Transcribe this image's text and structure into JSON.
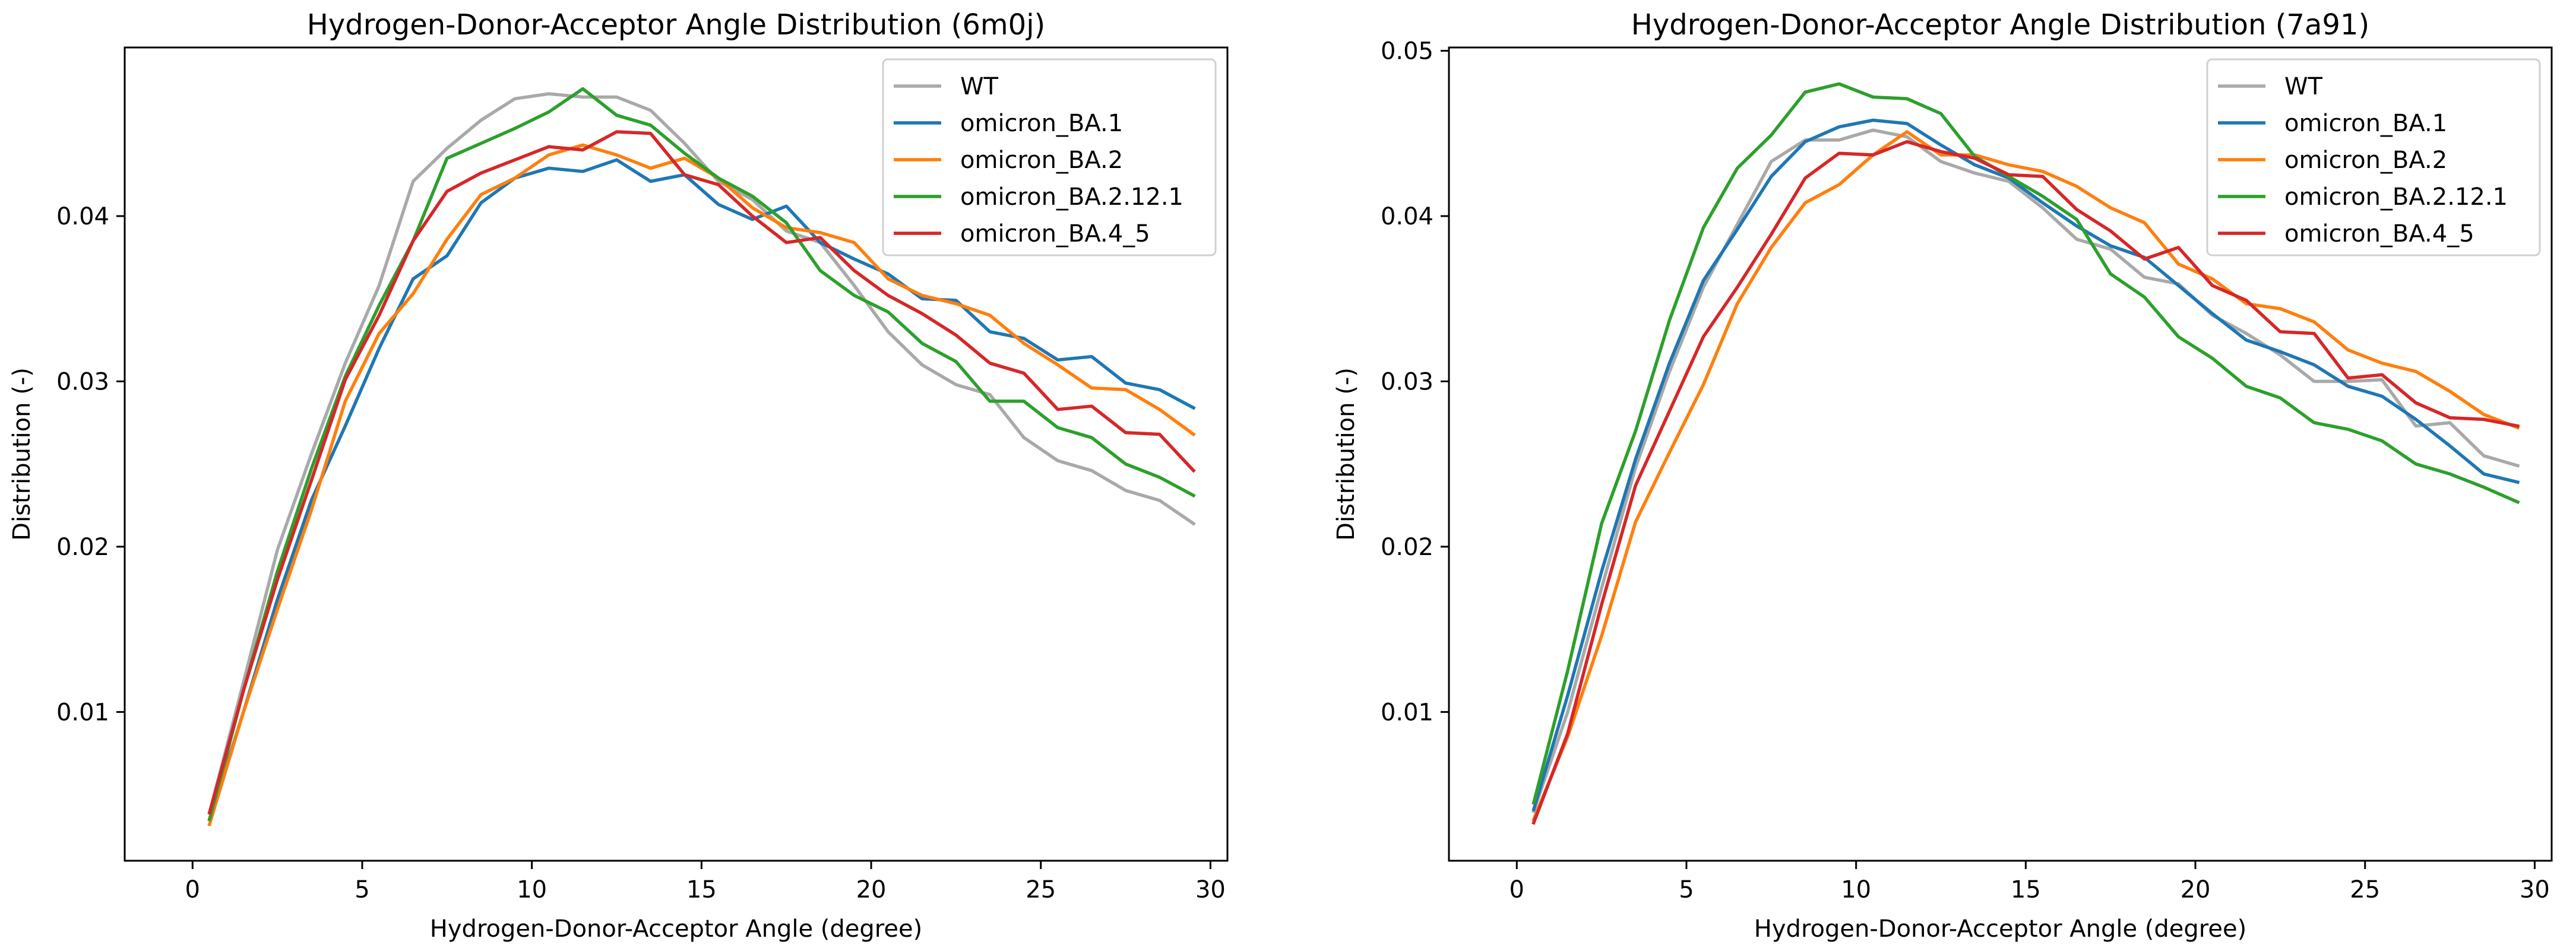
{
  "chart_data": [
    {
      "type": "line",
      "title": "Hydrogen-Donor-Acceptor Angle Distribution (6m0j)",
      "xlabel": "Hydrogen-Donor-Acceptor Angle (degree)",
      "ylabel": "Distribution (-)",
      "xlim": [
        -2,
        30.5
      ],
      "ylim": [
        0.001,
        0.0502
      ],
      "xticks": [
        0,
        5,
        10,
        15,
        20,
        25,
        30
      ],
      "xtick_labels": [
        "0",
        "5",
        "10",
        "15",
        "20",
        "25",
        "30"
      ],
      "yticks": [
        0.01,
        0.02,
        0.03,
        0.04
      ],
      "ytick_labels": [
        "0.01",
        "0.02",
        "0.03",
        "0.04"
      ],
      "grid": false,
      "legend_position": "top-right",
      "x": [
        0.5,
        1.5,
        2.5,
        3.5,
        4.5,
        5.5,
        6.5,
        7.5,
        8.5,
        9.5,
        10.5,
        11.5,
        12.5,
        13.5,
        14.5,
        15.5,
        16.5,
        17.5,
        18.5,
        19.5,
        20.5,
        21.5,
        22.5,
        23.5,
        24.5,
        25.5,
        26.5,
        27.5,
        28.5,
        29.5
      ],
      "series": [
        {
          "name": "WT",
          "color": "#a9a9a9",
          "values": [
            0.0039,
            0.0118,
            0.0198,
            0.0256,
            0.0311,
            0.0358,
            0.0421,
            0.0441,
            0.0458,
            0.0471,
            0.0474,
            0.0472,
            0.0472,
            0.0464,
            0.0444,
            0.0421,
            0.041,
            0.0391,
            0.0384,
            0.0358,
            0.033,
            0.031,
            0.0298,
            0.0292,
            0.0266,
            0.0252,
            0.0246,
            0.0234,
            0.0228,
            0.0214
          ]
        },
        {
          "name": "omicron_BA.1",
          "color": "#1f77b4",
          "values": [
            0.0035,
            0.01,
            0.0168,
            0.0228,
            0.0273,
            0.032,
            0.0362,
            0.0376,
            0.0408,
            0.0423,
            0.0429,
            0.0427,
            0.0434,
            0.0421,
            0.0425,
            0.0407,
            0.0398,
            0.0406,
            0.0384,
            0.0374,
            0.0365,
            0.035,
            0.0349,
            0.033,
            0.0326,
            0.0313,
            0.0315,
            0.0299,
            0.0295,
            0.0284
          ]
        },
        {
          "name": "omicron_BA.2",
          "color": "#ff7f0e",
          "values": [
            0.0032,
            0.01,
            0.0162,
            0.0222,
            0.0288,
            0.0329,
            0.0353,
            0.0386,
            0.0413,
            0.0423,
            0.0437,
            0.0443,
            0.0437,
            0.0429,
            0.0435,
            0.0423,
            0.0405,
            0.0393,
            0.039,
            0.0384,
            0.0362,
            0.0352,
            0.0347,
            0.034,
            0.0323,
            0.031,
            0.0296,
            0.0295,
            0.0283,
            0.0268
          ]
        },
        {
          "name": "omicron_BA.2.12.1",
          "color": "#2ca02c",
          "values": [
            0.0035,
            0.0113,
            0.0185,
            0.0247,
            0.0303,
            0.0346,
            0.0385,
            0.0435,
            0.0444,
            0.0453,
            0.0463,
            0.0477,
            0.0461,
            0.0455,
            0.0438,
            0.0423,
            0.0412,
            0.0396,
            0.0367,
            0.0352,
            0.0342,
            0.0323,
            0.0312,
            0.0288,
            0.0288,
            0.0272,
            0.0266,
            0.025,
            0.0242,
            0.0231
          ]
        },
        {
          "name": "omicron_BA.4_5",
          "color": "#d62728",
          "values": [
            0.0039,
            0.0113,
            0.018,
            0.024,
            0.0301,
            0.034,
            0.0385,
            0.0415,
            0.0426,
            0.0434,
            0.0442,
            0.044,
            0.0451,
            0.045,
            0.0425,
            0.0419,
            0.04,
            0.0384,
            0.0387,
            0.0367,
            0.0352,
            0.0341,
            0.0328,
            0.0311,
            0.0305,
            0.0283,
            0.0285,
            0.0269,
            0.0268,
            0.0246
          ]
        }
      ]
    },
    {
      "type": "line",
      "title": "Hydrogen-Donor-Acceptor Angle Distribution (7a91)",
      "xlabel": "Hydrogen-Donor-Acceptor Angle (degree)",
      "ylabel": "Distribution (-)",
      "xlim": [
        -2,
        30.5
      ],
      "ylim": [
        0.001,
        0.0502
      ],
      "xticks": [
        0,
        5,
        10,
        15,
        20,
        25,
        30
      ],
      "xtick_labels": [
        "0",
        "5",
        "10",
        "15",
        "20",
        "25",
        "30"
      ],
      "yticks": [
        0.01,
        0.02,
        0.03,
        0.04,
        0.05
      ],
      "ytick_labels": [
        "0.01",
        "0.02",
        "0.03",
        "0.04",
        "0.05"
      ],
      "grid": false,
      "legend_position": "top-right",
      "x": [
        0.5,
        1.5,
        2.5,
        3.5,
        4.5,
        5.5,
        6.5,
        7.5,
        8.5,
        9.5,
        10.5,
        11.5,
        12.5,
        13.5,
        14.5,
        15.5,
        16.5,
        17.5,
        18.5,
        19.5,
        20.5,
        21.5,
        22.5,
        23.5,
        24.5,
        25.5,
        26.5,
        27.5,
        28.5,
        29.5
      ],
      "series": [
        {
          "name": "WT",
          "color": "#a9a9a9",
          "values": [
            0.004,
            0.01,
            0.0175,
            0.0248,
            0.0306,
            0.0357,
            0.0395,
            0.0433,
            0.0446,
            0.0446,
            0.0452,
            0.0448,
            0.0433,
            0.0426,
            0.0421,
            0.0405,
            0.0386,
            0.038,
            0.0363,
            0.0359,
            0.034,
            0.0329,
            0.0316,
            0.03,
            0.03,
            0.0301,
            0.0273,
            0.0275,
            0.0255,
            0.0249
          ]
        },
        {
          "name": "omicron_BA.1",
          "color": "#1f77b4",
          "values": [
            0.0041,
            0.011,
            0.0185,
            0.0253,
            0.0311,
            0.0361,
            0.0392,
            0.0424,
            0.0445,
            0.0454,
            0.0458,
            0.0456,
            0.0443,
            0.0431,
            0.0423,
            0.0408,
            0.0394,
            0.0382,
            0.0375,
            0.0358,
            0.0341,
            0.0325,
            0.0318,
            0.031,
            0.0297,
            0.0291,
            0.0277,
            0.0261,
            0.0244,
            0.0239
          ]
        },
        {
          "name": "omicron_BA.2",
          "color": "#ff7f0e",
          "values": [
            0.0035,
            0.0085,
            0.0146,
            0.0215,
            0.0257,
            0.0298,
            0.0347,
            0.0381,
            0.0408,
            0.0419,
            0.0437,
            0.0451,
            0.0437,
            0.0437,
            0.0431,
            0.0427,
            0.0418,
            0.0405,
            0.0396,
            0.0371,
            0.0362,
            0.0347,
            0.0344,
            0.0336,
            0.0319,
            0.0311,
            0.0306,
            0.0294,
            0.028,
            0.0272
          ]
        },
        {
          "name": "omicron_BA.2.12.1",
          "color": "#2ca02c",
          "values": [
            0.0045,
            0.0125,
            0.0214,
            0.027,
            0.0337,
            0.0393,
            0.0429,
            0.0449,
            0.0475,
            0.048,
            0.0472,
            0.0471,
            0.0462,
            0.0436,
            0.0424,
            0.0412,
            0.0398,
            0.0365,
            0.0351,
            0.0327,
            0.0314,
            0.0297,
            0.029,
            0.0275,
            0.0271,
            0.0264,
            0.025,
            0.0244,
            0.0236,
            0.0227
          ]
        },
        {
          "name": "omicron_BA.4_5",
          "color": "#d62728",
          "values": [
            0.0033,
            0.0087,
            0.0165,
            0.0237,
            0.0282,
            0.0327,
            0.0357,
            0.0389,
            0.0423,
            0.0438,
            0.0437,
            0.0445,
            0.0439,
            0.0435,
            0.0425,
            0.0424,
            0.0404,
            0.0391,
            0.0374,
            0.0381,
            0.0358,
            0.0349,
            0.033,
            0.0329,
            0.0302,
            0.0304,
            0.0287,
            0.0278,
            0.0277,
            0.0273
          ]
        }
      ]
    }
  ]
}
